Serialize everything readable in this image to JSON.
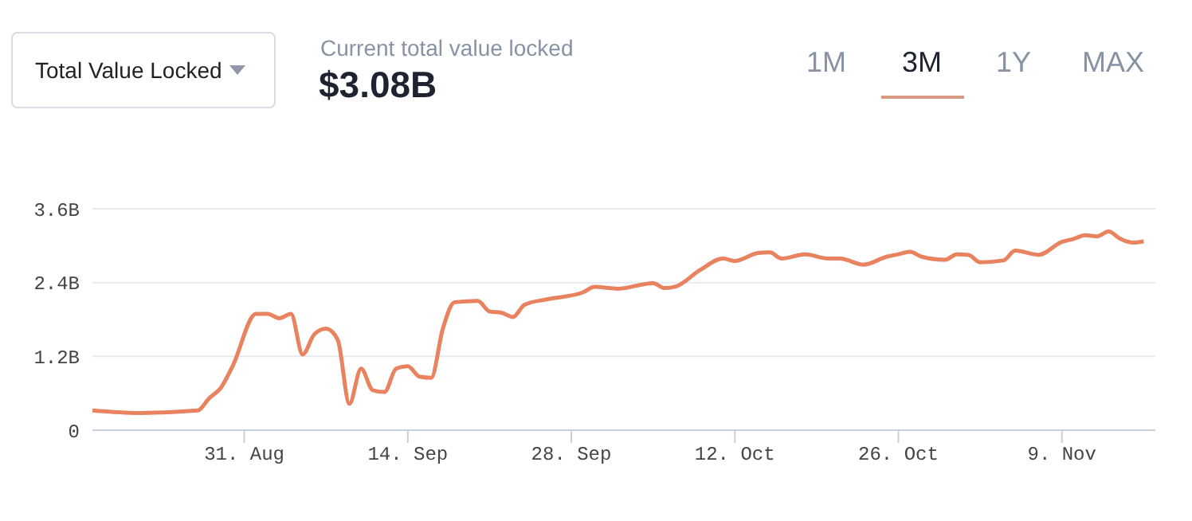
{
  "chart_data": {
    "type": "line",
    "title": "Current total value locked",
    "subtitle": "$3.08B",
    "annotations": [
      "Total Value Locked",
      "1M",
      "3M",
      "1Y",
      "MAX"
    ],
    "x": [
      "--08-18",
      "--08-22",
      "--08-27",
      "--08-28",
      "--08-29",
      "--08-30",
      "--09-01",
      "--09-02",
      "--09-03",
      "--09-04",
      "--09-05",
      "--09-06",
      "--09-07",
      "--09-08",
      "--09-09",
      "--09-10",
      "--09-11",
      "--09-12",
      "--09-13",
      "--09-14",
      "--09-15",
      "--09-16",
      "--09-17",
      "--09-18",
      "--09-20",
      "--09-21",
      "--09-22",
      "--09-23",
      "--09-24",
      "--09-26",
      "--09-29",
      "--09-30",
      "--10-02",
      "--10-05",
      "--10-06",
      "--10-07",
      "--10-09",
      "--10-11",
      "--10-12",
      "--10-14",
      "--10-15",
      "--10-16",
      "--10-18",
      "--10-20",
      "--10-21",
      "--10-23",
      "--10-25",
      "--10-26",
      "--10-27",
      "--10-28",
      "--10-30",
      "--10-31",
      "--11-01",
      "--11-02",
      "--11-04",
      "--11-05",
      "--11-07",
      "--11-09",
      "--11-10",
      "--11-11",
      "--11-12",
      "--11-13",
      "--11-14",
      "--11-15",
      "--11-16"
    ],
    "series": [
      {
        "color": "#e8825f",
        "values": [
          0.32,
          0.28,
          0.32,
          0.52,
          0.69,
          1.04,
          1.89,
          1.89,
          1.82,
          1.89,
          1.23,
          1.56,
          1.65,
          1.47,
          0.43,
          1.0,
          0.65,
          0.62,
          1.0,
          1.04,
          0.87,
          0.85,
          1.65,
          2.08,
          2.1,
          1.93,
          1.91,
          1.84,
          2.04,
          2.13,
          2.24,
          2.33,
          2.3,
          2.39,
          2.31,
          2.34,
          2.6,
          2.79,
          2.75,
          2.88,
          2.89,
          2.79,
          2.86,
          2.79,
          2.79,
          2.69,
          2.82,
          2.86,
          2.9,
          2.82,
          2.77,
          2.86,
          2.85,
          2.73,
          2.76,
          2.92,
          2.85,
          3.06,
          3.11,
          3.17,
          3.15,
          3.23,
          3.11,
          3.05,
          3.07
        ]
      }
    ],
    "xlim": [
      "--08-18",
      "--11-17"
    ],
    "xticks": [
      {
        "value": "--08-31",
        "label": "31. Aug"
      },
      {
        "value": "--09-14",
        "label": "14. Sep"
      },
      {
        "value": "--09-28",
        "label": "28. Sep"
      },
      {
        "value": "--10-12",
        "label": "12. Oct"
      },
      {
        "value": "--10-26",
        "label": "26. Oct"
      },
      {
        "value": "--11-09",
        "label": "9. Nov"
      }
    ],
    "ylim": [
      0,
      3.6
    ],
    "yticks": [
      {
        "value": 0,
        "label": "0"
      },
      {
        "value": 1.2,
        "label": "1.2B"
      },
      {
        "value": 2.4,
        "label": "2.4B"
      },
      {
        "value": 3.6,
        "label": "3.6B"
      }
    ],
    "grid": "y",
    "legend": false,
    "marker": "none",
    "line_style": "solid"
  }
}
